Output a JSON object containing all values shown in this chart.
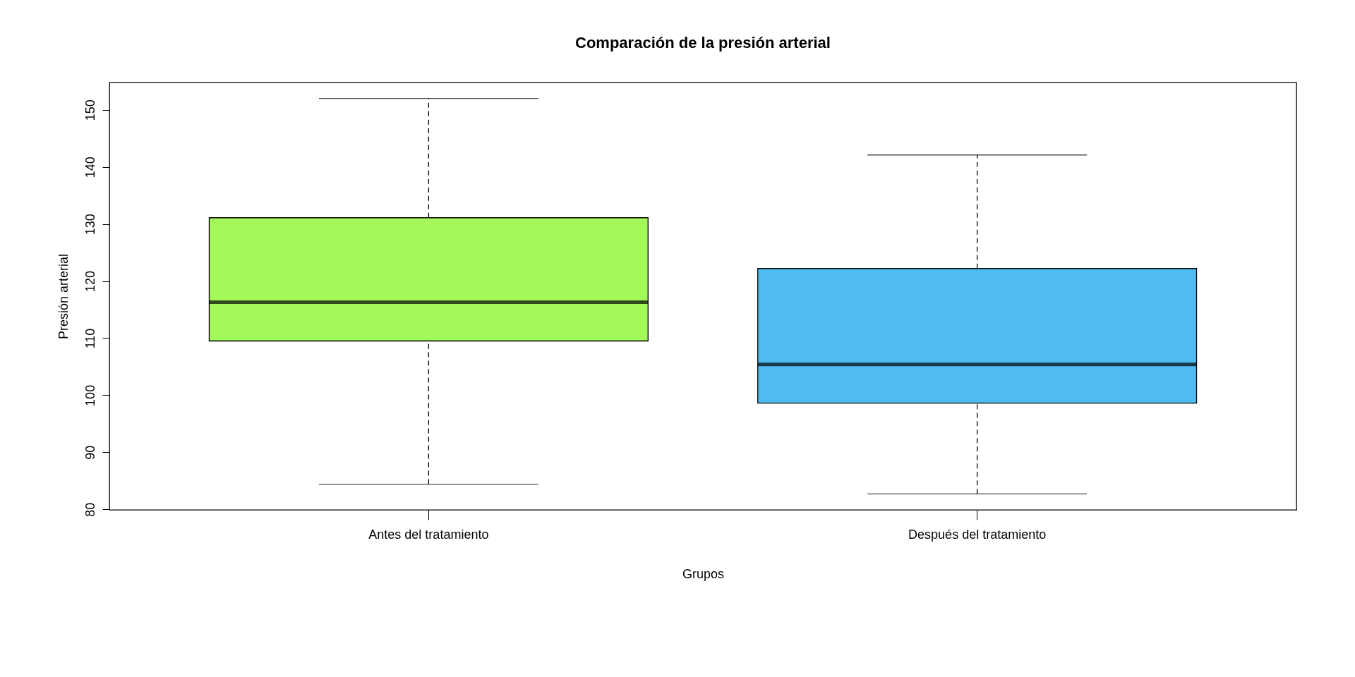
{
  "chart_data": {
    "type": "box",
    "title": "Comparación de la presión arterial",
    "xlabel": "Grupos",
    "ylabel": "Presión arterial",
    "categories": [
      "Antes del tratamiento",
      "Después del tratamiento"
    ],
    "boxes": [
      {
        "low": 84.4,
        "q1": 109.5,
        "median": 116.3,
        "q3": 131.1,
        "high": 152
      },
      {
        "low": 82.7,
        "q1": 98.6,
        "median": 105.4,
        "q3": 122.2,
        "high": 142.1
      }
    ],
    "colors": [
      "#a3f95a",
      "#4ebcf0"
    ],
    "ylim": [
      79.9,
      154.8
    ],
    "yticks": [
      80,
      90,
      100,
      110,
      120,
      130,
      140,
      150
    ]
  }
}
